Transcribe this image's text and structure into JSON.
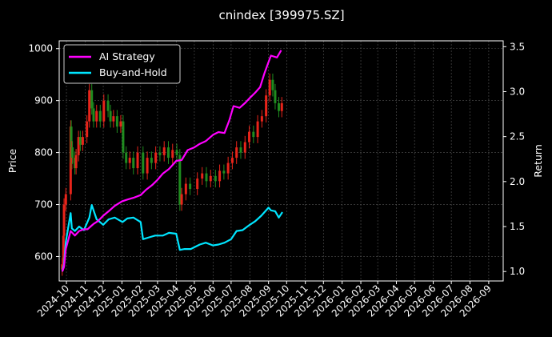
{
  "chart_data": {
    "type": "line",
    "title": "cnindex [399975.SZ]",
    "ylabel_left": "Price",
    "ylabel_right": "Return",
    "ylim_left": [
      553,
      1015
    ],
    "ylim_right": [
      0.895,
      3.565
    ],
    "yticks_left": [
      "600",
      "700",
      "800",
      "900",
      "1000"
    ],
    "yticks_right": [
      "1.0",
      "1.5",
      "2.0",
      "2.5",
      "3.0",
      "3.5"
    ],
    "xtick_labels": [
      "2024-10",
      "2024-11",
      "2024-12",
      "2025-01",
      "2025-02",
      "2025-03",
      "2025-04",
      "2025-05",
      "2025-06",
      "2025-07",
      "2025-08",
      "2025-09",
      "2025-10",
      "2025-11",
      "2025-12",
      "2026-01",
      "2026-02",
      "2026-03",
      "2026-04",
      "2026-05",
      "2026-06",
      "2026-07",
      "2026-08",
      "2026-09"
    ],
    "grid": true,
    "legend_position": "upper-left",
    "candle_colors": {
      "up": "#e8241a",
      "down": "#1f8c1f"
    },
    "series": [
      {
        "name": "AI Strategy",
        "color": "#ff00ff",
        "axis": "right",
        "points": [
          [
            "2024-09-24",
            1.0
          ],
          [
            "2024-09-27",
            1.05
          ],
          [
            "2024-09-30",
            1.25
          ],
          [
            "2024-10-08",
            1.45
          ],
          [
            "2024-10-15",
            1.4
          ],
          [
            "2024-10-22",
            1.45
          ],
          [
            "2024-10-30",
            1.47
          ],
          [
            "2024-11-05",
            1.47
          ],
          [
            "2024-11-10",
            1.5
          ],
          [
            "2024-11-15",
            1.53
          ],
          [
            "2024-11-22",
            1.56
          ],
          [
            "2024-12-01",
            1.62
          ],
          [
            "2024-12-10",
            1.67
          ],
          [
            "2024-12-20",
            1.73
          ],
          [
            "2025-01-01",
            1.78
          ],
          [
            "2025-01-10",
            1.8
          ],
          [
            "2025-01-20",
            1.82
          ],
          [
            "2025-02-01",
            1.85
          ],
          [
            "2025-02-10",
            1.91
          ],
          [
            "2025-02-20",
            1.96
          ],
          [
            "2025-03-01",
            2.02
          ],
          [
            "2025-03-10",
            2.09
          ],
          [
            "2025-03-20",
            2.14
          ],
          [
            "2025-04-01",
            2.23
          ],
          [
            "2025-04-10",
            2.24
          ],
          [
            "2025-04-20",
            2.35
          ],
          [
            "2025-05-01",
            2.38
          ],
          [
            "2025-05-10",
            2.42
          ],
          [
            "2025-05-20",
            2.45
          ],
          [
            "2025-06-01",
            2.52
          ],
          [
            "2025-06-10",
            2.55
          ],
          [
            "2025-06-20",
            2.54
          ],
          [
            "2025-06-28",
            2.68
          ],
          [
            "2025-07-05",
            2.84
          ],
          [
            "2025-07-15",
            2.82
          ],
          [
            "2025-07-25",
            2.88
          ],
          [
            "2025-08-01",
            2.93
          ],
          [
            "2025-08-10",
            2.99
          ],
          [
            "2025-08-18",
            3.05
          ],
          [
            "2025-08-25",
            3.2
          ],
          [
            "2025-09-01",
            3.33
          ],
          [
            "2025-09-05",
            3.4
          ],
          [
            "2025-09-15",
            3.38
          ],
          [
            "2025-09-22",
            3.46
          ]
        ]
      },
      {
        "name": "Buy-and-Hold",
        "color": "#00e5ff",
        "axis": "right",
        "points": [
          [
            "2024-09-24",
            1.0
          ],
          [
            "2024-09-27",
            1.08
          ],
          [
            "2024-09-30",
            1.33
          ],
          [
            "2024-10-08",
            1.65
          ],
          [
            "2024-10-10",
            1.48
          ],
          [
            "2024-10-15",
            1.45
          ],
          [
            "2024-10-22",
            1.5
          ],
          [
            "2024-10-30",
            1.46
          ],
          [
            "2024-11-08",
            1.6
          ],
          [
            "2024-11-12",
            1.74
          ],
          [
            "2024-11-20",
            1.58
          ],
          [
            "2024-12-01",
            1.52
          ],
          [
            "2024-12-10",
            1.58
          ],
          [
            "2024-12-20",
            1.6
          ],
          [
            "2025-01-02",
            1.55
          ],
          [
            "2025-01-10",
            1.59
          ],
          [
            "2025-01-20",
            1.6
          ],
          [
            "2025-02-01",
            1.55
          ],
          [
            "2025-02-05",
            1.36
          ],
          [
            "2025-02-15",
            1.38
          ],
          [
            "2025-02-25",
            1.4
          ],
          [
            "2025-03-10",
            1.4
          ],
          [
            "2025-03-20",
            1.43
          ],
          [
            "2025-04-01",
            1.42
          ],
          [
            "2025-04-07",
            1.24
          ],
          [
            "2025-04-15",
            1.25
          ],
          [
            "2025-04-25",
            1.25
          ],
          [
            "2025-05-10",
            1.3
          ],
          [
            "2025-05-20",
            1.32
          ],
          [
            "2025-06-01",
            1.29
          ],
          [
            "2025-06-10",
            1.3
          ],
          [
            "2025-06-20",
            1.32
          ],
          [
            "2025-07-01",
            1.36
          ],
          [
            "2025-07-10",
            1.45
          ],
          [
            "2025-07-20",
            1.46
          ],
          [
            "2025-08-01",
            1.52
          ],
          [
            "2025-08-10",
            1.56
          ],
          [
            "2025-08-20",
            1.62
          ],
          [
            "2025-09-01",
            1.71
          ],
          [
            "2025-09-05",
            1.68
          ],
          [
            "2025-09-12",
            1.67
          ],
          [
            "2025-09-18",
            1.6
          ],
          [
            "2025-09-24",
            1.66
          ]
        ]
      },
      {
        "name": "",
        "type": "candlestick",
        "axis": "left",
        "points": [
          [
            "2024-09-24",
            575,
            585
          ],
          [
            "2024-09-26",
            585,
            640
          ],
          [
            "2024-09-27",
            640,
            700
          ],
          [
            "2024-09-30",
            700,
            720
          ],
          [
            "2024-10-08",
            720,
            850
          ],
          [
            "2024-10-09",
            850,
            780
          ],
          [
            "2024-10-10",
            780,
            810
          ],
          [
            "2024-10-11",
            810,
            790
          ],
          [
            "2024-10-15",
            790,
            770
          ],
          [
            "2024-10-17",
            770,
            795
          ],
          [
            "2024-10-21",
            795,
            830
          ],
          [
            "2024-10-24",
            830,
            815
          ],
          [
            "2024-10-28",
            815,
            830
          ],
          [
            "2024-11-04",
            830,
            860
          ],
          [
            "2024-11-08",
            860,
            920
          ],
          [
            "2024-11-12",
            920,
            885
          ],
          [
            "2024-11-15",
            885,
            860
          ],
          [
            "2024-11-20",
            860,
            880
          ],
          [
            "2024-11-26",
            880,
            860
          ],
          [
            "2024-12-02",
            860,
            900
          ],
          [
            "2024-12-09",
            900,
            880
          ],
          [
            "2024-12-13",
            880,
            860
          ],
          [
            "2024-12-18",
            860,
            870
          ],
          [
            "2024-12-24",
            870,
            850
          ],
          [
            "2024-12-30",
            850,
            860
          ],
          [
            "2025-01-03",
            860,
            800
          ],
          [
            "2025-01-08",
            800,
            780
          ],
          [
            "2025-01-14",
            780,
            790
          ],
          [
            "2025-01-20",
            790,
            770
          ],
          [
            "2025-01-27",
            770,
            800
          ],
          [
            "2025-02-05",
            800,
            760
          ],
          [
            "2025-02-12",
            760,
            790
          ],
          [
            "2025-02-19",
            790,
            780
          ],
          [
            "2025-02-26",
            780,
            800
          ],
          [
            "2025-03-05",
            800,
            795
          ],
          [
            "2025-03-12",
            795,
            810
          ],
          [
            "2025-03-19",
            810,
            790
          ],
          [
            "2025-03-26",
            790,
            805
          ],
          [
            "2025-04-02",
            805,
            795
          ],
          [
            "2025-04-07",
            795,
            700
          ],
          [
            "2025-04-10",
            700,
            720
          ],
          [
            "2025-04-17",
            720,
            740
          ],
          [
            "2025-04-24",
            740,
            730
          ],
          [
            "2025-05-06",
            730,
            750
          ],
          [
            "2025-05-14",
            750,
            760
          ],
          [
            "2025-05-21",
            760,
            745
          ],
          [
            "2025-05-28",
            745,
            755
          ],
          [
            "2025-06-05",
            755,
            745
          ],
          [
            "2025-06-12",
            745,
            765
          ],
          [
            "2025-06-19",
            765,
            760
          ],
          [
            "2025-06-26",
            760,
            780
          ],
          [
            "2025-07-03",
            780,
            790
          ],
          [
            "2025-07-10",
            790,
            810
          ],
          [
            "2025-07-17",
            810,
            800
          ],
          [
            "2025-07-24",
            800,
            820
          ],
          [
            "2025-07-31",
            820,
            840
          ],
          [
            "2025-08-07",
            840,
            830
          ],
          [
            "2025-08-14",
            830,
            860
          ],
          [
            "2025-08-21",
            860,
            870
          ],
          [
            "2025-08-28",
            870,
            910
          ],
          [
            "2025-09-03",
            910,
            940
          ],
          [
            "2025-09-08",
            940,
            920
          ],
          [
            "2025-09-12",
            920,
            895
          ],
          [
            "2025-09-18",
            895,
            880
          ],
          [
            "2025-09-23",
            880,
            895
          ]
        ]
      }
    ]
  }
}
